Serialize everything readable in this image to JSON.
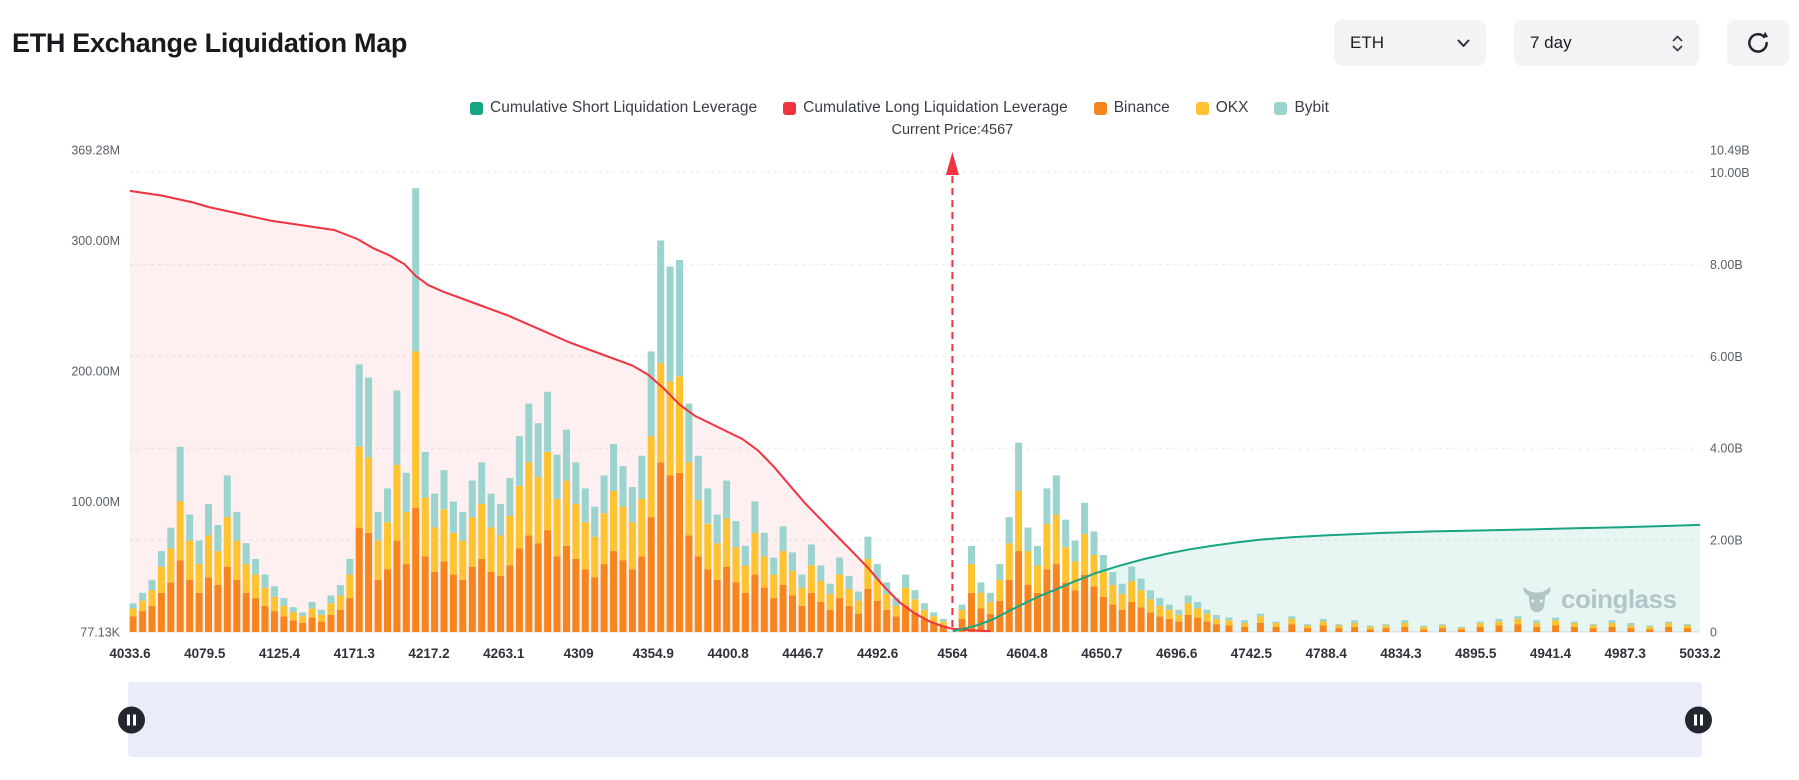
{
  "header": {
    "title": "ETH Exchange Liquidation Map",
    "coin_select": {
      "value": "ETH"
    },
    "period_select": {
      "value": "7 day"
    }
  },
  "legend": {
    "items": [
      {
        "label": "Cumulative Short Liquidation Leverage",
        "color": "#18a584"
      },
      {
        "label": "Cumulative Long Liquidation Leverage",
        "color": "#ef3341"
      },
      {
        "label": "Binance",
        "color": "#f6851f"
      },
      {
        "label": "OKX",
        "color": "#fdc330"
      },
      {
        "label": "Bybit",
        "color": "#9bd4cf"
      }
    ]
  },
  "current_price_label": "Current Price:4567",
  "watermark": "coinglass",
  "chart_data": {
    "type": "bar",
    "title": "ETH Exchange Liquidation Map",
    "current_price": 4567,
    "legend_position": "top-center",
    "grid": true,
    "x_ticks": [
      "4033.6",
      "4079.5",
      "4125.4",
      "4171.3",
      "4217.2",
      "4263.1",
      "4309",
      "4354.9",
      "4400.8",
      "4446.7",
      "4492.6",
      "4564",
      "4604.8",
      "4650.7",
      "4696.6",
      "4742.5",
      "4788.4",
      "4834.3",
      "4895.5",
      "4941.4",
      "4987.3",
      "5033.2"
    ],
    "left_axis": {
      "unit": "M",
      "max": 369.28,
      "ticks": [
        {
          "label": "369.28M",
          "value": 369.28
        },
        {
          "label": "300.00M",
          "value": 300
        },
        {
          "label": "200.00M",
          "value": 200
        },
        {
          "label": "100.00M",
          "value": 100
        },
        {
          "label": "77.13K",
          "value": 0.077
        }
      ]
    },
    "right_axis": {
      "unit": "B",
      "max": 10.49,
      "ticks": [
        {
          "label": "10.49B",
          "value": 10.49
        },
        {
          "label": "10.00B",
          "value": 10
        },
        {
          "label": "8.00B",
          "value": 8
        },
        {
          "label": "6.00B",
          "value": 6
        },
        {
          "label": "4.00B",
          "value": 4
        },
        {
          "label": "2.00B",
          "value": 2
        },
        {
          "label": "0",
          "value": 0
        }
      ]
    },
    "price_line": {
      "fraction": 0.5238,
      "label": "Current Price:4567",
      "color": "#ef3341"
    },
    "bars": {
      "unit": "M",
      "stack": [
        "Binance",
        "OKX",
        "Bybit"
      ],
      "colors": [
        "#f6851f",
        "#fdc330",
        "#9bd4cf"
      ],
      "points": [
        [
          0.002,
          12,
          6,
          4
        ],
        [
          0.008,
          16,
          8,
          6
        ],
        [
          0.014,
          20,
          12,
          8
        ],
        [
          0.02,
          30,
          20,
          12
        ],
        [
          0.026,
          38,
          26,
          16
        ],
        [
          0.032,
          55,
          45,
          42
        ],
        [
          0.038,
          40,
          30,
          20
        ],
        [
          0.044,
          30,
          22,
          18
        ],
        [
          0.05,
          42,
          32,
          24
        ],
        [
          0.056,
          36,
          26,
          20
        ],
        [
          0.062,
          50,
          38,
          32
        ],
        [
          0.068,
          40,
          30,
          22
        ],
        [
          0.074,
          30,
          22,
          16
        ],
        [
          0.08,
          26,
          18,
          12
        ],
        [
          0.086,
          20,
          14,
          10
        ],
        [
          0.092,
          16,
          11,
          8
        ],
        [
          0.098,
          12,
          8,
          6
        ],
        [
          0.104,
          9,
          6,
          4
        ],
        [
          0.11,
          7,
          5,
          3
        ],
        [
          0.116,
          11,
          7,
          5
        ],
        [
          0.122,
          8,
          5,
          4
        ],
        [
          0.128,
          13,
          9,
          6
        ],
        [
          0.134,
          17,
          11,
          8
        ],
        [
          0.14,
          26,
          18,
          12
        ],
        [
          0.146,
          80,
          62,
          63
        ],
        [
          0.152,
          76,
          58,
          61
        ],
        [
          0.158,
          40,
          30,
          22
        ],
        [
          0.164,
          48,
          36,
          26
        ],
        [
          0.17,
          70,
          58,
          57
        ],
        [
          0.176,
          52,
          40,
          30
        ],
        [
          0.182,
          95,
          120,
          125
        ],
        [
          0.188,
          58,
          45,
          35
        ],
        [
          0.194,
          46,
          34,
          26
        ],
        [
          0.2,
          54,
          40,
          30
        ],
        [
          0.206,
          44,
          32,
          24
        ],
        [
          0.212,
          40,
          30,
          22
        ],
        [
          0.218,
          50,
          38,
          28
        ],
        [
          0.224,
          56,
          42,
          32
        ],
        [
          0.23,
          46,
          34,
          26
        ],
        [
          0.236,
          43,
          31,
          24
        ],
        [
          0.242,
          51,
          38,
          29
        ],
        [
          0.248,
          64,
          48,
          38
        ],
        [
          0.254,
          74,
          56,
          45
        ],
        [
          0.26,
          68,
          51,
          41
        ],
        [
          0.266,
          78,
          60,
          46
        ],
        [
          0.272,
          58,
          44,
          34
        ],
        [
          0.278,
          66,
          50,
          39
        ],
        [
          0.284,
          56,
          42,
          32
        ],
        [
          0.29,
          48,
          36,
          26
        ],
        [
          0.296,
          42,
          31,
          23
        ],
        [
          0.302,
          52,
          39,
          29
        ],
        [
          0.308,
          62,
          46,
          36
        ],
        [
          0.314,
          55,
          41,
          31
        ],
        [
          0.32,
          48,
          36,
          27
        ],
        [
          0.326,
          58,
          44,
          33
        ],
        [
          0.332,
          88,
          62,
          65
        ],
        [
          0.338,
          130,
          76,
          94
        ],
        [
          0.344,
          120,
          72,
          88
        ],
        [
          0.35,
          122,
          74,
          89
        ],
        [
          0.356,
          74,
          56,
          45
        ],
        [
          0.362,
          58,
          43,
          34
        ],
        [
          0.368,
          48,
          35,
          27
        ],
        [
          0.374,
          40,
          28,
          22
        ],
        [
          0.38,
          50,
          37,
          29
        ],
        [
          0.386,
          38,
          27,
          20
        ],
        [
          0.392,
          30,
          21,
          15
        ],
        [
          0.398,
          44,
          32,
          24
        ],
        [
          0.404,
          34,
          24,
          18
        ],
        [
          0.41,
          26,
          18,
          13
        ],
        [
          0.416,
          36,
          26,
          19
        ],
        [
          0.422,
          28,
          19,
          14
        ],
        [
          0.428,
          20,
          14,
          10
        ],
        [
          0.434,
          30,
          21,
          16
        ],
        [
          0.44,
          23,
          16,
          12
        ],
        [
          0.446,
          17,
          12,
          8
        ],
        [
          0.452,
          26,
          18,
          13
        ],
        [
          0.458,
          20,
          13,
          10
        ],
        [
          0.464,
          14,
          10,
          7
        ],
        [
          0.47,
          33,
          23,
          17
        ],
        [
          0.476,
          24,
          16,
          12
        ],
        [
          0.482,
          17,
          12,
          9
        ],
        [
          0.488,
          12,
          8,
          6
        ],
        [
          0.494,
          20,
          14,
          10
        ],
        [
          0.5,
          15,
          10,
          7
        ],
        [
          0.506,
          10,
          7,
          5
        ],
        [
          0.512,
          7,
          5,
          3
        ],
        [
          0.518,
          5,
          3,
          2
        ],
        [
          0.53,
          10,
          7,
          4
        ],
        [
          0.536,
          30,
          22,
          14
        ],
        [
          0.542,
          18,
          12,
          8
        ],
        [
          0.548,
          14,
          9,
          7
        ],
        [
          0.554,
          24,
          16,
          12
        ],
        [
          0.56,
          40,
          28,
          20
        ],
        [
          0.566,
          62,
          46,
          37
        ],
        [
          0.572,
          36,
          26,
          18
        ],
        [
          0.578,
          30,
          21,
          15
        ],
        [
          0.584,
          48,
          35,
          27
        ],
        [
          0.59,
          52,
          38,
          30
        ],
        [
          0.596,
          38,
          27,
          21
        ],
        [
          0.602,
          32,
          22,
          16
        ],
        [
          0.608,
          44,
          31,
          24
        ],
        [
          0.614,
          35,
          24,
          18
        ],
        [
          0.62,
          27,
          19,
          13
        ],
        [
          0.626,
          21,
          15,
          10
        ],
        [
          0.632,
          17,
          12,
          8
        ],
        [
          0.638,
          23,
          16,
          11
        ],
        [
          0.644,
          19,
          13,
          9
        ],
        [
          0.65,
          15,
          10,
          7
        ],
        [
          0.656,
          12,
          8,
          6
        ],
        [
          0.662,
          10,
          7,
          4
        ],
        [
          0.668,
          8,
          5,
          4
        ],
        [
          0.674,
          13,
          9,
          6
        ],
        [
          0.68,
          11,
          7,
          5
        ],
        [
          0.686,
          8,
          6,
          3
        ],
        [
          0.692,
          6,
          4,
          3
        ],
        [
          0.7,
          5,
          4,
          2
        ],
        [
          0.71,
          4,
          3,
          2
        ],
        [
          0.72,
          7,
          5,
          2
        ],
        [
          0.73,
          4,
          3,
          1
        ],
        [
          0.74,
          6,
          4,
          2
        ],
        [
          0.75,
          3,
          2,
          1
        ],
        [
          0.76,
          5,
          3,
          2
        ],
        [
          0.77,
          3,
          2,
          1
        ],
        [
          0.78,
          4,
          3,
          2
        ],
        [
          0.79,
          2,
          2,
          1
        ],
        [
          0.8,
          3,
          2,
          1
        ],
        [
          0.812,
          4,
          3,
          2
        ],
        [
          0.824,
          2,
          2,
          1
        ],
        [
          0.836,
          3,
          2,
          1
        ],
        [
          0.848,
          2,
          1,
          1
        ],
        [
          0.86,
          4,
          3,
          1
        ],
        [
          0.872,
          5,
          3,
          2
        ],
        [
          0.884,
          6,
          4,
          2
        ],
        [
          0.896,
          4,
          3,
          2
        ],
        [
          0.908,
          5,
          4,
          2
        ],
        [
          0.92,
          4,
          3,
          1
        ],
        [
          0.932,
          3,
          2,
          1
        ],
        [
          0.944,
          4,
          3,
          2
        ],
        [
          0.956,
          3,
          2,
          2
        ],
        [
          0.968,
          2,
          2,
          1
        ],
        [
          0.98,
          4,
          3,
          1
        ],
        [
          0.992,
          3,
          2,
          1
        ]
      ]
    },
    "long_series": {
      "name": "Cumulative Long Liquidation Leverage",
      "color": "#ef3341",
      "fill": "rgba(239,51,65,0.08)",
      "unit": "B",
      "points": [
        [
          0,
          9.6
        ],
        [
          0.02,
          9.5
        ],
        [
          0.04,
          9.35
        ],
        [
          0.05,
          9.25
        ],
        [
          0.07,
          9.1
        ],
        [
          0.09,
          8.95
        ],
        [
          0.11,
          8.85
        ],
        [
          0.13,
          8.75
        ],
        [
          0.145,
          8.55
        ],
        [
          0.155,
          8.35
        ],
        [
          0.165,
          8.2
        ],
        [
          0.175,
          8.0
        ],
        [
          0.182,
          7.75
        ],
        [
          0.19,
          7.55
        ],
        [
          0.2,
          7.4
        ],
        [
          0.22,
          7.15
        ],
        [
          0.24,
          6.9
        ],
        [
          0.26,
          6.6
        ],
        [
          0.28,
          6.3
        ],
        [
          0.3,
          6.05
        ],
        [
          0.32,
          5.8
        ],
        [
          0.33,
          5.6
        ],
        [
          0.34,
          5.3
        ],
        [
          0.35,
          4.95
        ],
        [
          0.36,
          4.7
        ],
        [
          0.375,
          4.45
        ],
        [
          0.39,
          4.2
        ],
        [
          0.4,
          3.95
        ],
        [
          0.41,
          3.6
        ],
        [
          0.42,
          3.2
        ],
        [
          0.43,
          2.8
        ],
        [
          0.44,
          2.45
        ],
        [
          0.45,
          2.1
        ],
        [
          0.46,
          1.75
        ],
        [
          0.47,
          1.4
        ],
        [
          0.48,
          1.0
        ],
        [
          0.49,
          0.65
        ],
        [
          0.5,
          0.4
        ],
        [
          0.51,
          0.22
        ],
        [
          0.518,
          0.12
        ],
        [
          0.524,
          0.07
        ],
        [
          0.535,
          0.04
        ],
        [
          0.548,
          0.02
        ]
      ]
    },
    "short_series": {
      "name": "Cumulative Short Liquidation Leverage",
      "color": "#18a584",
      "fill": "rgba(24,165,132,0.10)",
      "unit": "B",
      "points": [
        [
          0.524,
          0.02
        ],
        [
          0.53,
          0.06
        ],
        [
          0.54,
          0.15
        ],
        [
          0.55,
          0.28
        ],
        [
          0.56,
          0.46
        ],
        [
          0.57,
          0.63
        ],
        [
          0.58,
          0.79
        ],
        [
          0.59,
          0.93
        ],
        [
          0.6,
          1.08
        ],
        [
          0.615,
          1.28
        ],
        [
          0.63,
          1.44
        ],
        [
          0.645,
          1.58
        ],
        [
          0.66,
          1.7
        ],
        [
          0.675,
          1.8
        ],
        [
          0.69,
          1.88
        ],
        [
          0.705,
          1.95
        ],
        [
          0.72,
          2.01
        ],
        [
          0.74,
          2.06
        ],
        [
          0.76,
          2.1
        ],
        [
          0.78,
          2.13
        ],
        [
          0.8,
          2.16
        ],
        [
          0.83,
          2.19
        ],
        [
          0.86,
          2.21
        ],
        [
          0.89,
          2.23
        ],
        [
          0.92,
          2.26
        ],
        [
          0.95,
          2.28
        ],
        [
          0.98,
          2.31
        ],
        [
          1,
          2.33
        ]
      ]
    }
  }
}
